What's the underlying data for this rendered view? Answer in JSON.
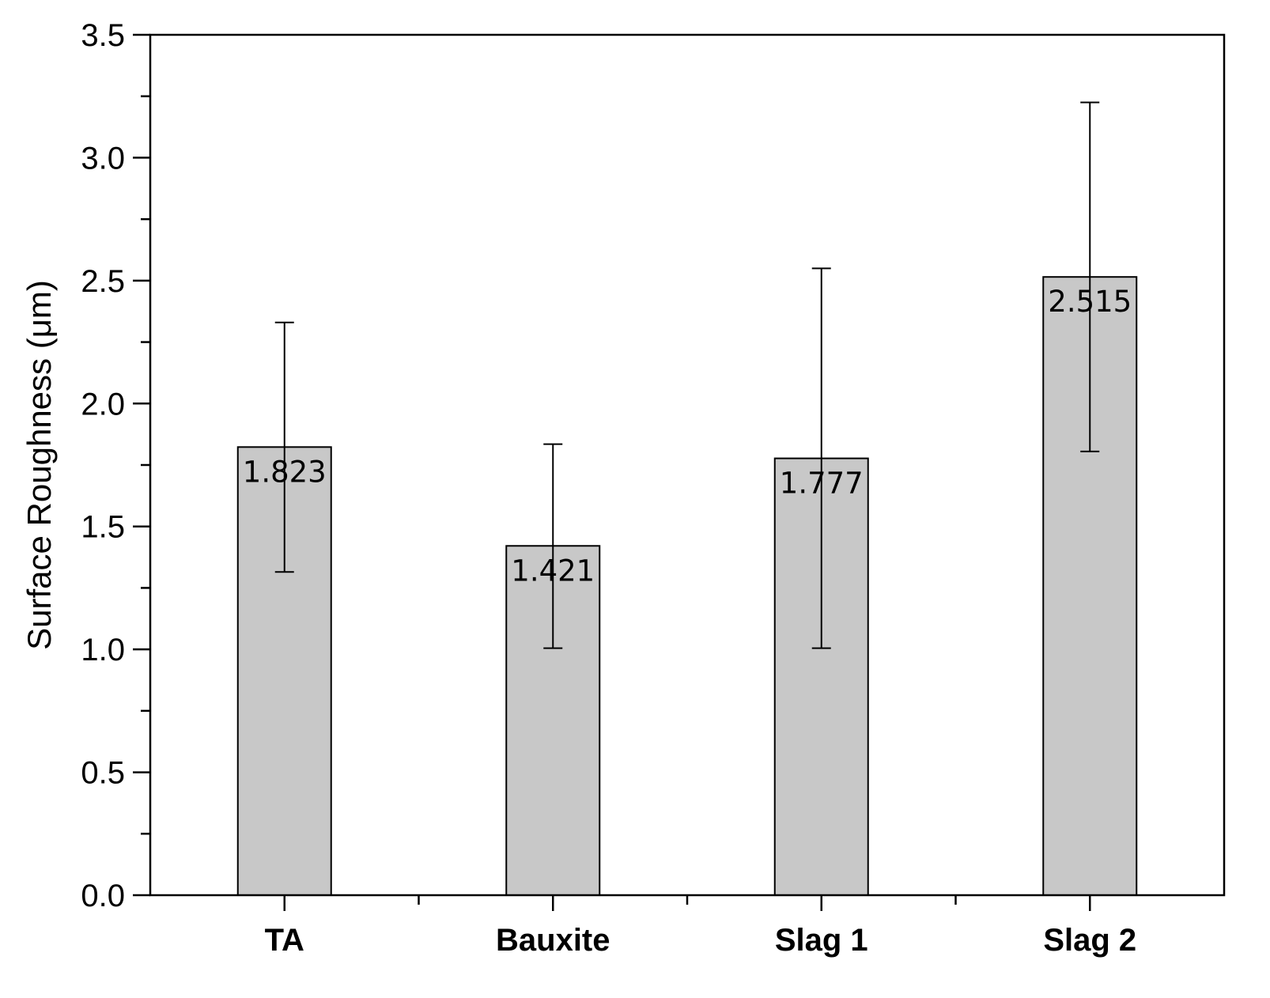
{
  "chart_data": {
    "type": "bar",
    "title": "",
    "xlabel": "",
    "ylabel": "Surface Roughness (μm)",
    "ylim": [
      0,
      3.5
    ],
    "yticks": [
      "0.0",
      "0.5",
      "1.0",
      "1.5",
      "2.0",
      "2.5",
      "3.0",
      "3.5"
    ],
    "categories": [
      "TA",
      "Bauxite",
      "Slag 1",
      "Slag 2"
    ],
    "values": [
      1.823,
      1.421,
      1.777,
      2.515
    ],
    "data_labels": [
      "1.823",
      "1.421",
      "1.777",
      "2.515"
    ],
    "error_low": [
      1.315,
      1.005,
      1.005,
      1.805
    ],
    "error_high": [
      2.33,
      1.835,
      2.55,
      3.225
    ],
    "bar_color": "#c8c8c8",
    "grid": false,
    "legend": "none"
  }
}
